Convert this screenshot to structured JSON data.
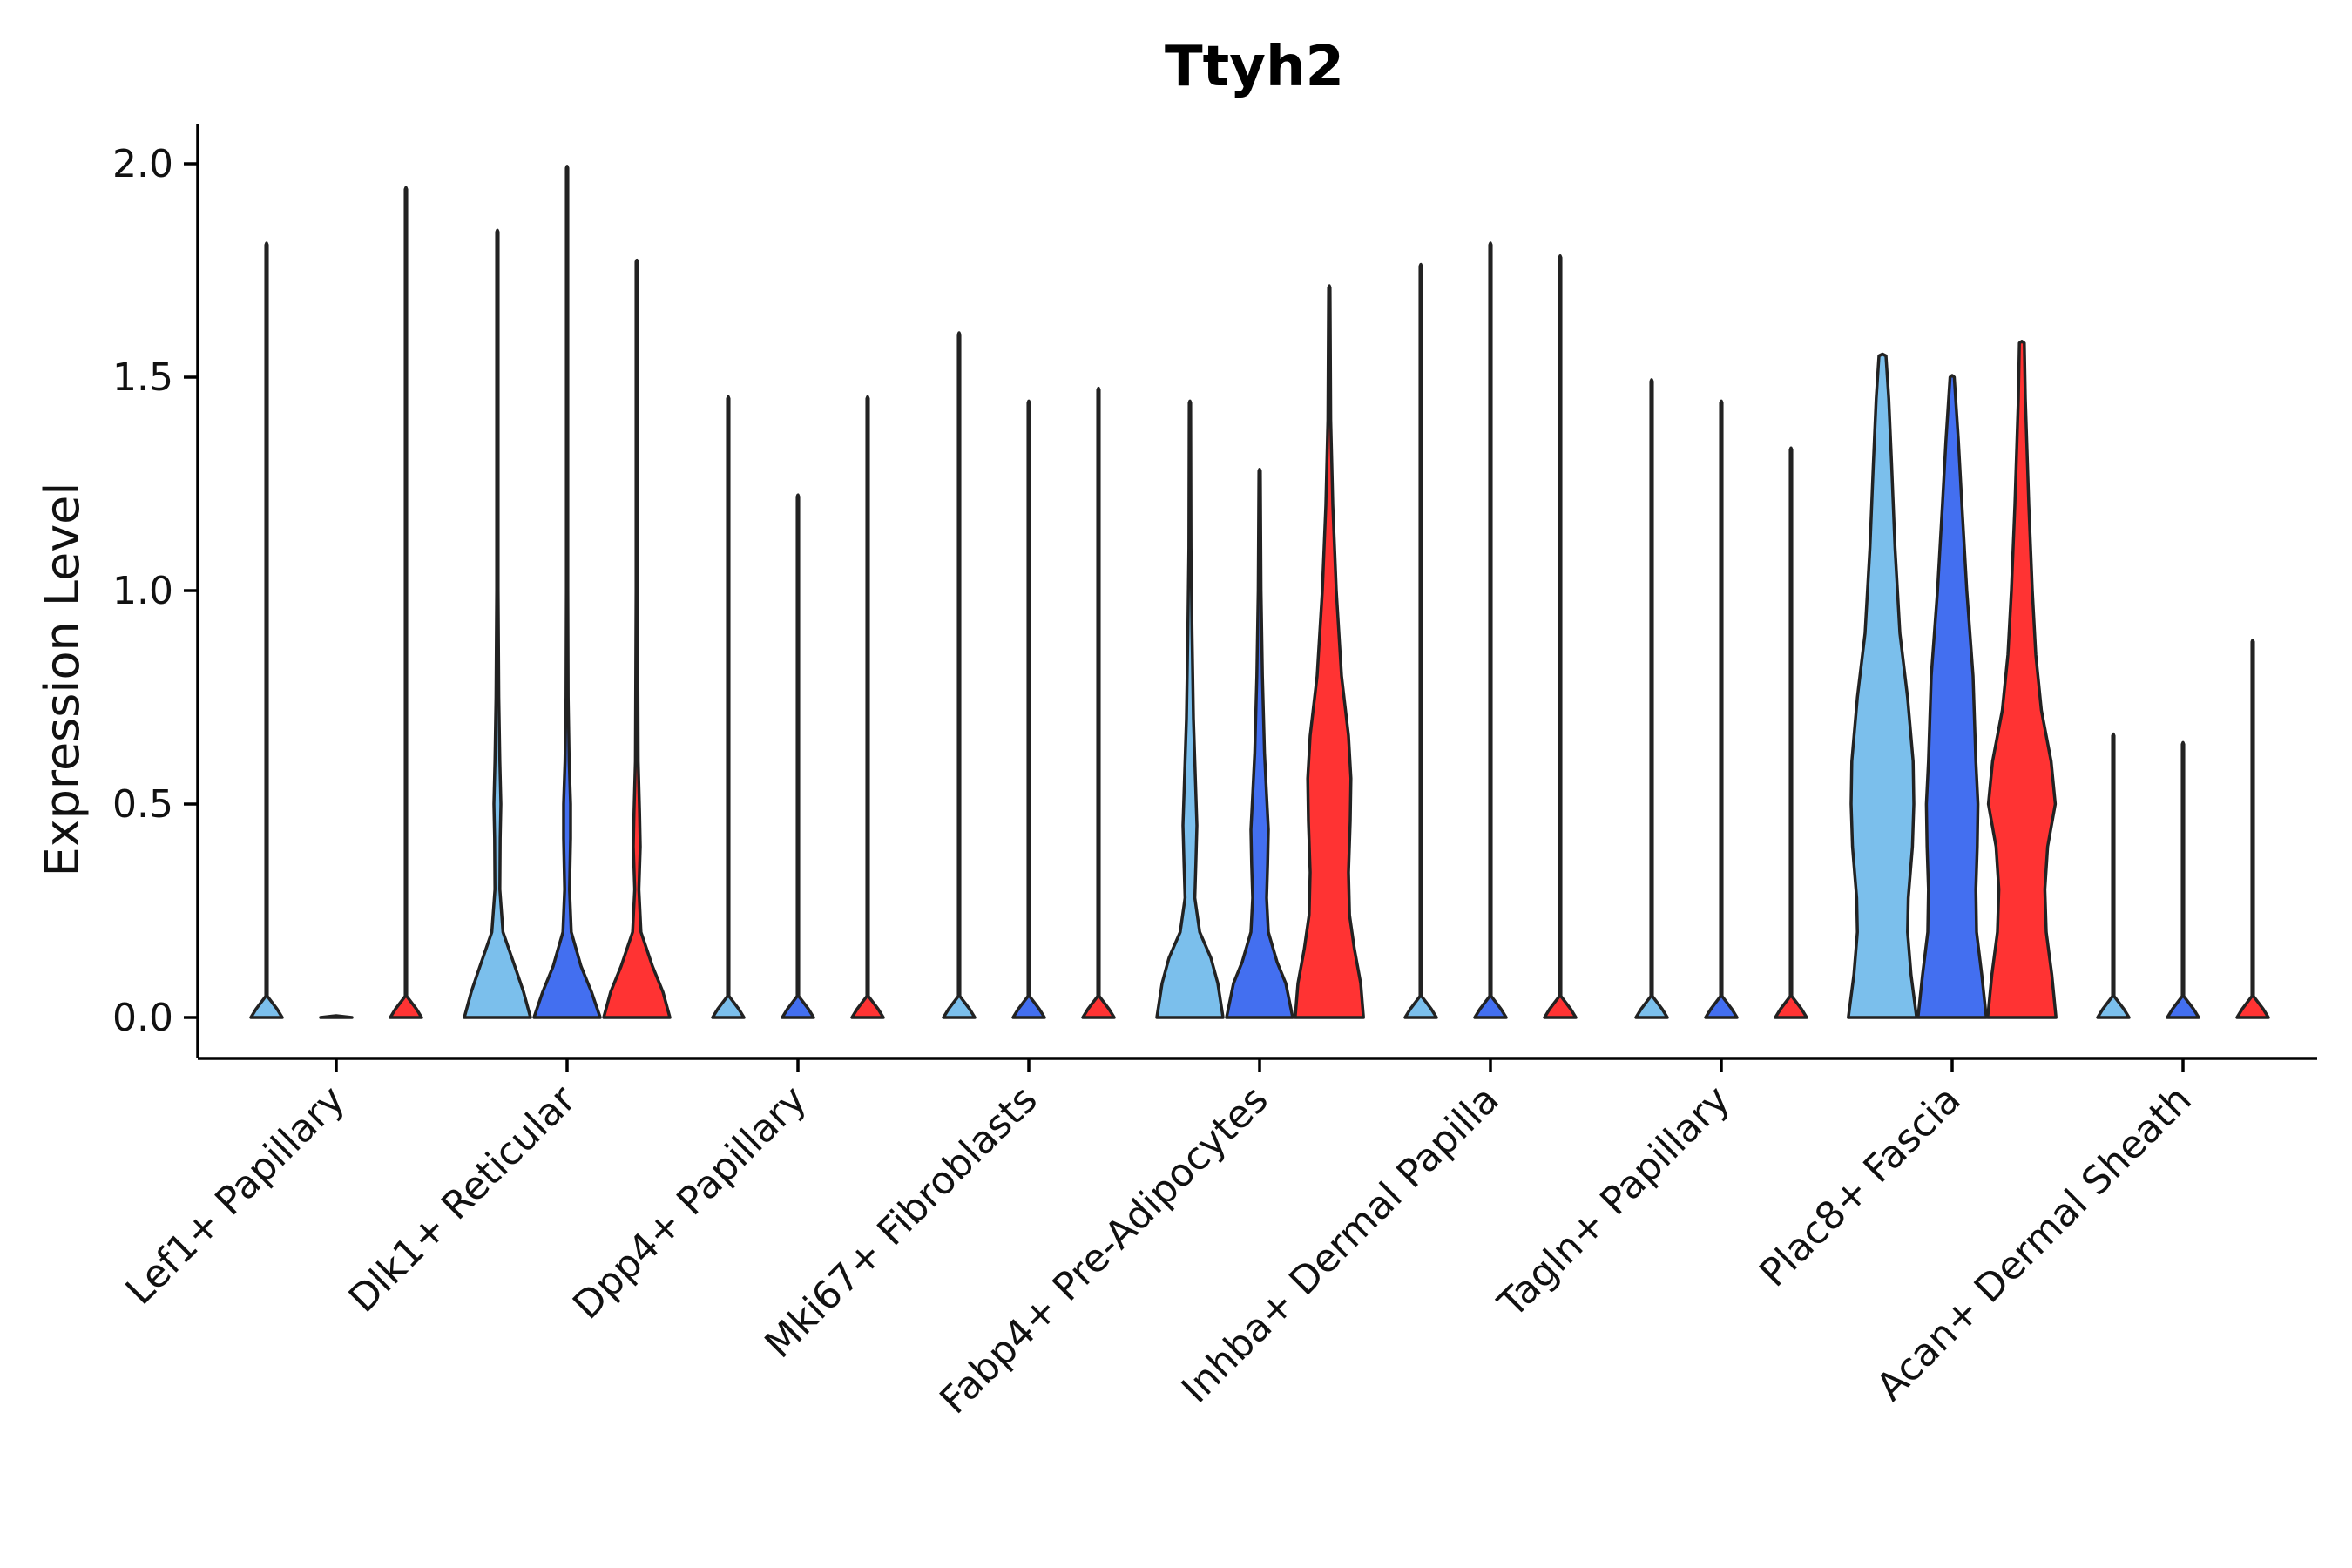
{
  "chart_data": {
    "type": "violin",
    "title": "Ttyh2",
    "xlabel": "",
    "ylabel": "Expression Level",
    "ylim": [
      -0.1,
      2.1
    ],
    "yticks": [
      0.0,
      0.5,
      1.0,
      1.5,
      2.0
    ],
    "ytick_labels": [
      "0.0",
      "0.5",
      "1.0",
      "1.5",
      "2.0"
    ],
    "series_colors": [
      "#7bbfec",
      "#436ff0",
      "#ff3333"
    ],
    "categories": [
      "Lef1+ Papillary",
      "Dlk1+ Reticular",
      "Dpp4+ Papillary",
      "Mki67+ Fibroblasts",
      "Fabp4+ Pre-Adipocytes",
      "Inhba+ Dermal Papilla",
      "Tagln+ Papillary",
      "Plac8+ Fascia",
      "Acan+ Dermal Sheath"
    ],
    "violins": [
      {
        "category": 0,
        "series": 0,
        "max": 1.81,
        "profile": [
          [
            0,
            0.45
          ],
          [
            0.02,
            0.3
          ],
          [
            0.05,
            0.02
          ],
          [
            1.81,
            0.02
          ]
        ]
      },
      {
        "category": 0,
        "series": 1,
        "max": 0.0,
        "profile": [
          [
            0,
            0.45
          ]
        ]
      },
      {
        "category": 0,
        "series": 2,
        "max": 1.94,
        "profile": [
          [
            0,
            0.45
          ],
          [
            0.02,
            0.3
          ],
          [
            0.05,
            0.02
          ],
          [
            1.94,
            0.02
          ]
        ]
      },
      {
        "category": 1,
        "series": 0,
        "max": 1.84,
        "profile": [
          [
            0,
            0.95
          ],
          [
            0.06,
            0.75
          ],
          [
            0.12,
            0.5
          ],
          [
            0.2,
            0.16
          ],
          [
            0.3,
            0.07
          ],
          [
            0.42,
            0.08
          ],
          [
            0.5,
            0.1
          ],
          [
            0.6,
            0.07
          ],
          [
            0.75,
            0.04
          ],
          [
            1.0,
            0.02
          ],
          [
            1.84,
            0.02
          ]
        ]
      },
      {
        "category": 1,
        "series": 1,
        "max": 1.99,
        "profile": [
          [
            0,
            0.95
          ],
          [
            0.06,
            0.7
          ],
          [
            0.12,
            0.4
          ],
          [
            0.2,
            0.12
          ],
          [
            0.3,
            0.07
          ],
          [
            0.42,
            0.1
          ],
          [
            0.5,
            0.1
          ],
          [
            0.6,
            0.06
          ],
          [
            0.75,
            0.03
          ],
          [
            1.0,
            0.02
          ],
          [
            1.99,
            0.02
          ]
        ]
      },
      {
        "category": 1,
        "series": 2,
        "max": 1.77,
        "profile": [
          [
            0,
            0.95
          ],
          [
            0.06,
            0.75
          ],
          [
            0.12,
            0.45
          ],
          [
            0.2,
            0.12
          ],
          [
            0.3,
            0.06
          ],
          [
            0.4,
            0.1
          ],
          [
            0.48,
            0.08
          ],
          [
            0.6,
            0.04
          ],
          [
            1.0,
            0.02
          ],
          [
            1.77,
            0.02
          ]
        ]
      },
      {
        "category": 2,
        "series": 0,
        "max": 1.45,
        "profile": [
          [
            0,
            0.45
          ],
          [
            0.02,
            0.3
          ],
          [
            0.05,
            0.02
          ],
          [
            1.45,
            0.02
          ]
        ]
      },
      {
        "category": 2,
        "series": 1,
        "max": 1.22,
        "profile": [
          [
            0,
            0.45
          ],
          [
            0.02,
            0.3
          ],
          [
            0.05,
            0.02
          ],
          [
            1.22,
            0.02
          ]
        ]
      },
      {
        "category": 2,
        "series": 2,
        "max": 1.45,
        "profile": [
          [
            0,
            0.45
          ],
          [
            0.02,
            0.3
          ],
          [
            0.05,
            0.02
          ],
          [
            1.45,
            0.02
          ]
        ]
      },
      {
        "category": 3,
        "series": 0,
        "max": 1.6,
        "profile": [
          [
            0,
            0.45
          ],
          [
            0.02,
            0.3
          ],
          [
            0.05,
            0.02
          ],
          [
            1.6,
            0.02
          ]
        ]
      },
      {
        "category": 3,
        "series": 1,
        "max": 1.44,
        "profile": [
          [
            0,
            0.45
          ],
          [
            0.02,
            0.3
          ],
          [
            0.05,
            0.02
          ],
          [
            1.44,
            0.02
          ]
        ]
      },
      {
        "category": 3,
        "series": 2,
        "max": 1.47,
        "profile": [
          [
            0,
            0.45
          ],
          [
            0.02,
            0.3
          ],
          [
            0.05,
            0.02
          ],
          [
            1.47,
            0.02
          ]
        ]
      },
      {
        "category": 4,
        "series": 0,
        "max": 1.44,
        "profile": [
          [
            0,
            0.95
          ],
          [
            0.08,
            0.8
          ],
          [
            0.14,
            0.6
          ],
          [
            0.2,
            0.28
          ],
          [
            0.28,
            0.14
          ],
          [
            0.36,
            0.17
          ],
          [
            0.45,
            0.2
          ],
          [
            0.55,
            0.16
          ],
          [
            0.7,
            0.1
          ],
          [
            0.9,
            0.06
          ],
          [
            1.1,
            0.03
          ],
          [
            1.44,
            0.02
          ]
        ]
      },
      {
        "category": 4,
        "series": 1,
        "max": 1.28,
        "profile": [
          [
            0,
            0.95
          ],
          [
            0.08,
            0.75
          ],
          [
            0.13,
            0.5
          ],
          [
            0.2,
            0.25
          ],
          [
            0.28,
            0.2
          ],
          [
            0.36,
            0.23
          ],
          [
            0.44,
            0.25
          ],
          [
            0.52,
            0.2
          ],
          [
            0.62,
            0.14
          ],
          [
            0.8,
            0.08
          ],
          [
            1.0,
            0.04
          ],
          [
            1.28,
            0.02
          ]
        ]
      },
      {
        "category": 4,
        "series": 2,
        "max": 1.71,
        "profile": [
          [
            0,
            0.98
          ],
          [
            0.08,
            0.9
          ],
          [
            0.16,
            0.72
          ],
          [
            0.24,
            0.58
          ],
          [
            0.34,
            0.55
          ],
          [
            0.46,
            0.6
          ],
          [
            0.56,
            0.62
          ],
          [
            0.66,
            0.55
          ],
          [
            0.8,
            0.35
          ],
          [
            1.0,
            0.2
          ],
          [
            1.2,
            0.1
          ],
          [
            1.4,
            0.04
          ],
          [
            1.71,
            0.02
          ]
        ]
      },
      {
        "category": 5,
        "series": 0,
        "max": 1.76,
        "profile": [
          [
            0,
            0.45
          ],
          [
            0.02,
            0.3
          ],
          [
            0.05,
            0.02
          ],
          [
            1.76,
            0.02
          ]
        ]
      },
      {
        "category": 5,
        "series": 1,
        "max": 1.81,
        "profile": [
          [
            0,
            0.45
          ],
          [
            0.02,
            0.3
          ],
          [
            0.05,
            0.02
          ],
          [
            1.81,
            0.02
          ]
        ]
      },
      {
        "category": 5,
        "series": 2,
        "max": 1.78,
        "profile": [
          [
            0,
            0.45
          ],
          [
            0.02,
            0.3
          ],
          [
            0.05,
            0.02
          ],
          [
            1.78,
            0.02
          ]
        ]
      },
      {
        "category": 6,
        "series": 0,
        "max": 1.49,
        "profile": [
          [
            0,
            0.45
          ],
          [
            0.02,
            0.3
          ],
          [
            0.05,
            0.02
          ],
          [
            1.49,
            0.02
          ]
        ]
      },
      {
        "category": 6,
        "series": 1,
        "max": 1.44,
        "profile": [
          [
            0,
            0.45
          ],
          [
            0.02,
            0.3
          ],
          [
            0.05,
            0.02
          ],
          [
            1.44,
            0.02
          ]
        ]
      },
      {
        "category": 6,
        "series": 2,
        "max": 1.33,
        "profile": [
          [
            0,
            0.45
          ],
          [
            0.02,
            0.3
          ],
          [
            0.05,
            0.02
          ],
          [
            1.33,
            0.02
          ]
        ]
      },
      {
        "category": 7,
        "series": 0,
        "max": 1.55,
        "profile": [
          [
            0,
            0.98
          ],
          [
            0.1,
            0.82
          ],
          [
            0.2,
            0.72
          ],
          [
            0.28,
            0.74
          ],
          [
            0.4,
            0.86
          ],
          [
            0.5,
            0.9
          ],
          [
            0.6,
            0.88
          ],
          [
            0.75,
            0.72
          ],
          [
            0.9,
            0.5
          ],
          [
            1.1,
            0.36
          ],
          [
            1.3,
            0.26
          ],
          [
            1.45,
            0.18
          ],
          [
            1.55,
            0.1
          ]
        ]
      },
      {
        "category": 7,
        "series": 1,
        "max": 1.5,
        "profile": [
          [
            0,
            0.98
          ],
          [
            0.1,
            0.85
          ],
          [
            0.2,
            0.7
          ],
          [
            0.3,
            0.68
          ],
          [
            0.4,
            0.72
          ],
          [
            0.5,
            0.74
          ],
          [
            0.6,
            0.68
          ],
          [
            0.8,
            0.6
          ],
          [
            1.0,
            0.42
          ],
          [
            1.2,
            0.28
          ],
          [
            1.35,
            0.18
          ],
          [
            1.5,
            0.06
          ]
        ]
      },
      {
        "category": 7,
        "series": 2,
        "max": 1.58,
        "profile": [
          [
            0,
            0.98
          ],
          [
            0.1,
            0.86
          ],
          [
            0.2,
            0.7
          ],
          [
            0.3,
            0.66
          ],
          [
            0.4,
            0.74
          ],
          [
            0.5,
            0.96
          ],
          [
            0.6,
            0.84
          ],
          [
            0.72,
            0.56
          ],
          [
            0.85,
            0.4
          ],
          [
            1.0,
            0.3
          ],
          [
            1.2,
            0.2
          ],
          [
            1.45,
            0.1
          ],
          [
            1.58,
            0.07
          ]
        ]
      },
      {
        "category": 8,
        "series": 0,
        "max": 0.66,
        "profile": [
          [
            0,
            0.45
          ],
          [
            0.02,
            0.3
          ],
          [
            0.05,
            0.02
          ],
          [
            0.66,
            0.02
          ]
        ]
      },
      {
        "category": 8,
        "series": 1,
        "max": 0.64,
        "profile": [
          [
            0,
            0.45
          ],
          [
            0.02,
            0.3
          ],
          [
            0.05,
            0.02
          ],
          [
            0.64,
            0.02
          ]
        ]
      },
      {
        "category": 8,
        "series": 2,
        "max": 0.88,
        "profile": [
          [
            0,
            0.45
          ],
          [
            0.02,
            0.3
          ],
          [
            0.05,
            0.02
          ],
          [
            0.88,
            0.02
          ]
        ]
      }
    ]
  }
}
